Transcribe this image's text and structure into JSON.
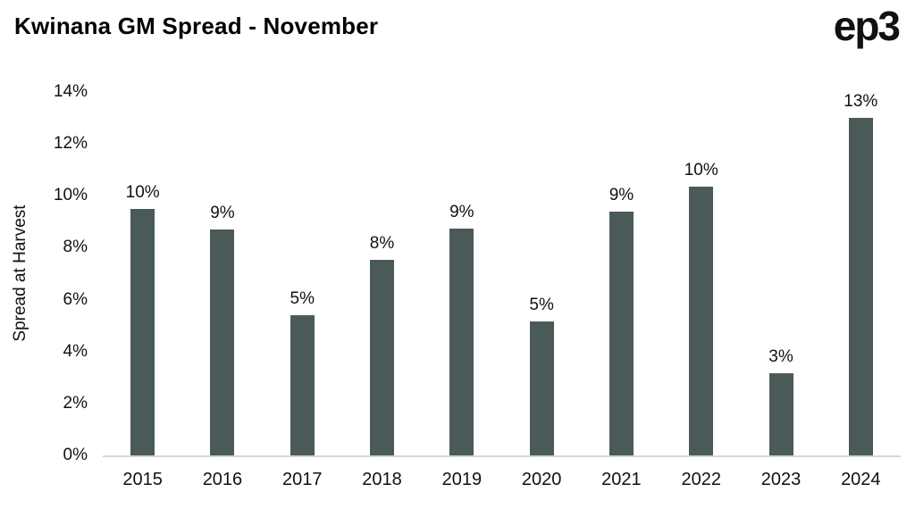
{
  "logo": {
    "text": "ep3"
  },
  "chart_data": {
    "type": "bar",
    "title": "Kwinana GM Spread - November",
    "ylabel": "Spread at Harvest",
    "xlabel": "",
    "categories": [
      "2015",
      "2016",
      "2017",
      "2018",
      "2019",
      "2020",
      "2021",
      "2022",
      "2023",
      "2024"
    ],
    "values": [
      9.5,
      8.7,
      5.4,
      7.55,
      8.75,
      5.15,
      9.4,
      10.35,
      3.15,
      13.15
    ],
    "bar_labels": [
      "10%",
      "9%",
      "5%",
      "8%",
      "9%",
      "5%",
      "9%",
      "10%",
      "3%",
      "13%"
    ],
    "ylim": [
      0,
      14
    ],
    "ytick_values": [
      0,
      2,
      4,
      6,
      8,
      10,
      12,
      14
    ],
    "ytick_labels": [
      "0%",
      "2%",
      "4%",
      "6%",
      "8%",
      "10%",
      "12%",
      "14%"
    ],
    "grid": false,
    "legend": "none",
    "bar_color": "#4a5a58"
  }
}
